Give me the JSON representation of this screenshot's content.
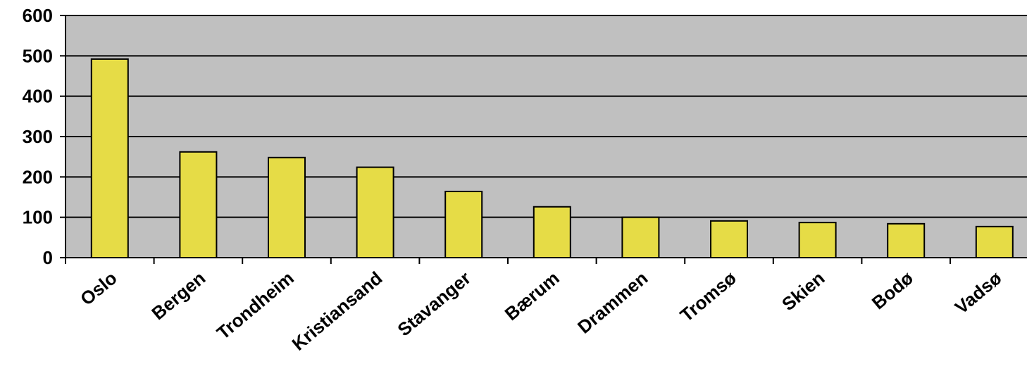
{
  "chart_data": {
    "type": "bar",
    "categories": [
      "Oslo",
      "Bergen",
      "Trondheim",
      "Kristiansand",
      "Stavanger",
      "Bærum",
      "Drammen",
      "Tromsø",
      "Skien",
      "Bodø",
      "Vadsø"
    ],
    "values": [
      492,
      262,
      248,
      224,
      164,
      126,
      100,
      91,
      87,
      84,
      77
    ],
    "ylim": [
      0,
      600
    ],
    "yticks": [
      0,
      100,
      200,
      300,
      400,
      500,
      600
    ],
    "grid": true,
    "legend": "none",
    "colors": {
      "bar": "#E6DC46",
      "bar_edge": "#000000",
      "plot_background": "#C0C0C0",
      "gridline": "#000000"
    }
  }
}
